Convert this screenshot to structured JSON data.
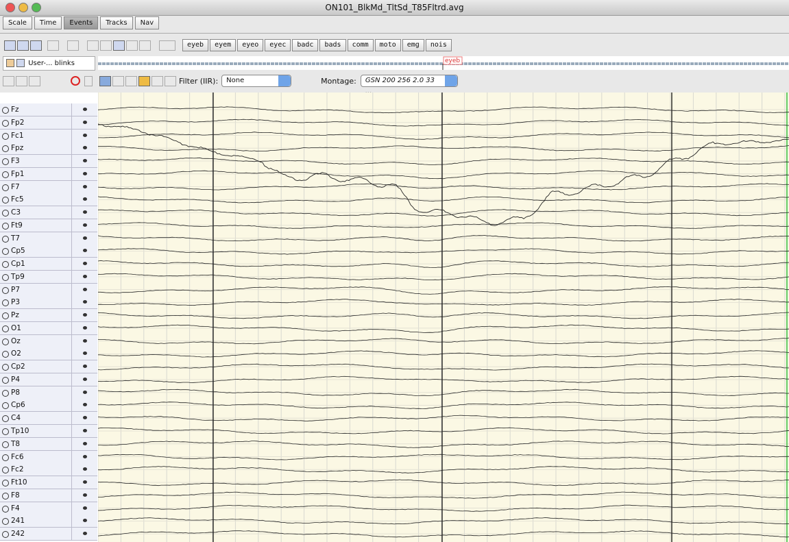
{
  "window": {
    "title": "ON101_BlkMd_TltSd_T85Fltrd.avg"
  },
  "tabs": [
    "Scale",
    "Time",
    "Events",
    "Tracks",
    "Nav"
  ],
  "selected_tab": "Events",
  "event_buttons": [
    "eyeb",
    "eyem",
    "eyeo",
    "eyec",
    "badc",
    "bads",
    "comm",
    "moto",
    "emg",
    "nois"
  ],
  "event_track": {
    "label": "User-... blinks",
    "marker": "eyeb"
  },
  "filter": {
    "label": "Filter (IIR):",
    "value": "None"
  },
  "montage": {
    "label": "Montage:",
    "value": "GSN 200 256 2.0 33 ..."
  },
  "channels": [
    "Fz",
    "Fp2",
    "Fc1",
    "Fpz",
    "F3",
    "Fp1",
    "F7",
    "Fc5",
    "C3",
    "Ft9",
    "T7",
    "Cp5",
    "Cp1",
    "Tp9",
    "P7",
    "P3",
    "Pz",
    "O1",
    "Oz",
    "O2",
    "Cp2",
    "P4",
    "P8",
    "Cp6",
    "C4",
    "Tp10",
    "T8",
    "Fc6",
    "Fc2",
    "Ft10",
    "F8",
    "F4",
    "241",
    "242"
  ]
}
